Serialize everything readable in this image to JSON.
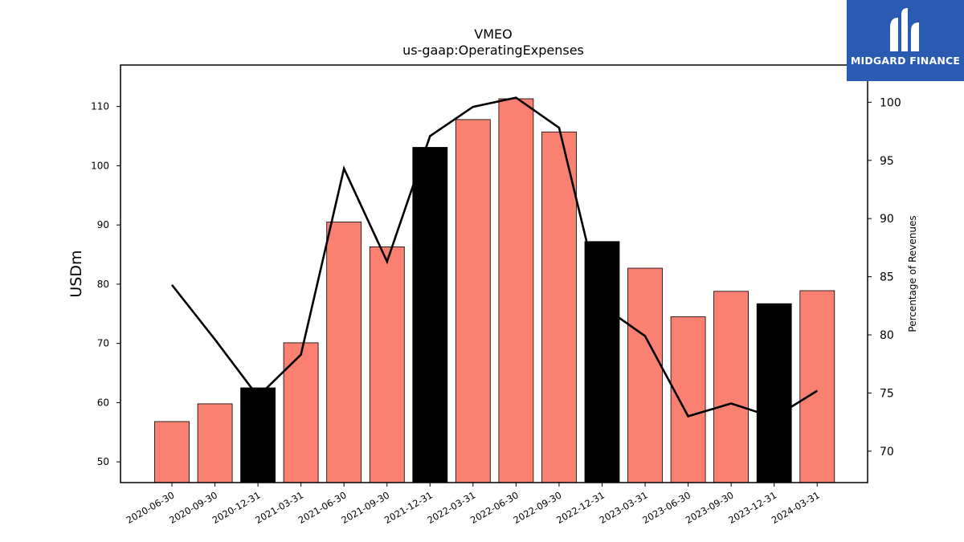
{
  "chart_data": {
    "type": "bar",
    "title": "VMEO",
    "subtitle": "us-gaap:OperatingExpenses",
    "ylabel": "USDm",
    "ylabel_right": "Percentage of Revenues",
    "ylim": [
      46.5,
      117
    ],
    "ylim_right": [
      67.3,
      103.2
    ],
    "yticks": [
      50,
      60,
      70,
      80,
      90,
      100,
      110
    ],
    "yticks_right": [
      70,
      75,
      80,
      85,
      90,
      95,
      100
    ],
    "categories": [
      "2020-06-30",
      "2020-09-30",
      "2020-12-31",
      "2021-03-31",
      "2021-06-30",
      "2021-09-30",
      "2021-12-31",
      "2022-03-31",
      "2022-06-30",
      "2022-09-30",
      "2022-12-31",
      "2023-03-31",
      "2023-06-30",
      "2023-09-30",
      "2023-12-31",
      "2024-03-31"
    ],
    "series": [
      {
        "kind": "bar",
        "axis": "left",
        "values": [
          56.8,
          59.8,
          62.5,
          70.1,
          90.5,
          86.3,
          103.1,
          107.8,
          111.3,
          105.7,
          87.2,
          82.7,
          74.5,
          78.8,
          76.7,
          78.9
        ],
        "colors": [
          "#fa8072",
          "#fa8072",
          "#000000",
          "#fa8072",
          "#fa8072",
          "#fa8072",
          "#000000",
          "#fa8072",
          "#fa8072",
          "#fa8072",
          "#000000",
          "#fa8072",
          "#fa8072",
          "#fa8072",
          "#000000",
          "#fa8072"
        ]
      },
      {
        "kind": "line",
        "axis": "right",
        "values": [
          84.3,
          79.6,
          74.7,
          78.3,
          94.3,
          86.3,
          97.1,
          99.6,
          100.4,
          97.8,
          82.5,
          79.9,
          73.0,
          74.1,
          72.9,
          75.2
        ],
        "color": "#000000"
      }
    ]
  },
  "logo": {
    "text": "MIDGARD FINANCE",
    "background": "#2a5bb0"
  }
}
